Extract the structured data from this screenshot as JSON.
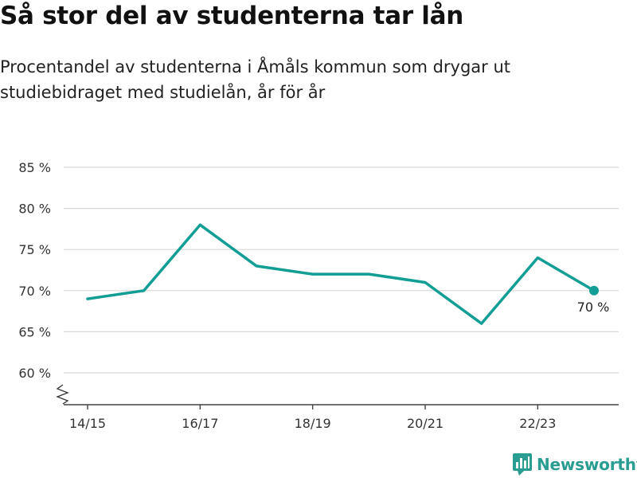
{
  "title": "Så stor del av studenterna tar lån",
  "subtitle": "Procentandel av studenterna i Åmåls kommun som drygar ut studiebidraget med studielån, år för år",
  "brand": {
    "name": "Newsworthy",
    "color": "#2a9d93",
    "icon": "newsworthy-logo-icon"
  },
  "chart_data": {
    "type": "line",
    "title": "Så stor del av studenterna tar lån",
    "x": [
      "14/15",
      "15/16",
      "16/17",
      "17/18",
      "18/19",
      "19/20",
      "20/21",
      "21/22",
      "22/23",
      "23/24"
    ],
    "x_tick_labels": [
      "14/15",
      "16/17",
      "18/19",
      "20/21",
      "22/23"
    ],
    "series": [
      {
        "values": [
          69,
          70,
          78,
          73,
          72,
          72,
          71,
          66,
          74,
          70
        ],
        "color": "#129e94"
      }
    ],
    "ylim": [
      60,
      85
    ],
    "y_ticks": [
      60,
      65,
      70,
      75,
      80,
      85
    ],
    "y_tick_format": "{v} %",
    "y_axis_break": true,
    "grid": true,
    "end_label": "70 %"
  }
}
